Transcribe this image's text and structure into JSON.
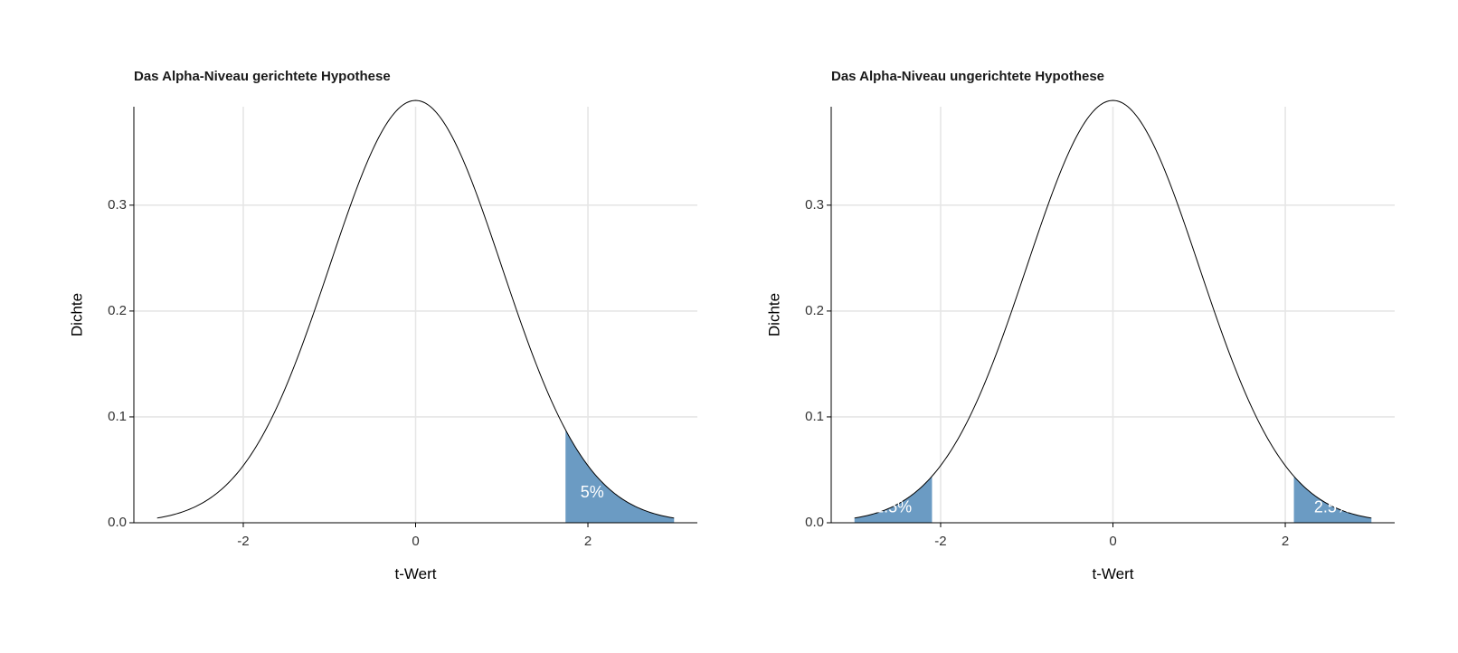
{
  "colors": {
    "fill": "#6b9bc3",
    "grid": "#e6e6e6",
    "curve": "#000000"
  },
  "chart_data": [
    {
      "type": "area",
      "title": "Das Alpha-Niveau gerichtete Hypothese",
      "xlabel": "t-Wert",
      "ylabel": "Dichte",
      "xlim": [
        -3.27,
        3.27
      ],
      "ylim": [
        0,
        0.393
      ],
      "x_ticks": [
        -2,
        0,
        2
      ],
      "x_tick_labels": [
        "-2",
        "0",
        "2"
      ],
      "y_ticks": [
        0.0,
        0.1,
        0.2,
        0.3
      ],
      "y_tick_labels": [
        "0.0",
        "0.1",
        "0.2",
        "0.3"
      ],
      "curve": {
        "distribution": "normal",
        "mean": 0,
        "sd": 1,
        "x_range": [
          -3,
          3
        ]
      },
      "shaded_regions": [
        {
          "from": 1.74,
          "to": 3,
          "label": "5%",
          "label_x": 2.05,
          "label_y": 0.028
        }
      ],
      "grid": true
    },
    {
      "type": "area",
      "title": "Das Alpha-Niveau ungerichtete Hypothese",
      "xlabel": "t-Wert",
      "ylabel": "Dichte",
      "xlim": [
        -3.27,
        3.27
      ],
      "ylim": [
        0,
        0.393
      ],
      "x_ticks": [
        -2,
        0,
        2
      ],
      "x_tick_labels": [
        "-2",
        "0",
        "2"
      ],
      "y_ticks": [
        0.0,
        0.1,
        0.2,
        0.3
      ],
      "y_tick_labels": [
        "0.0",
        "0.1",
        "0.2",
        "0.3"
      ],
      "curve": {
        "distribution": "normal",
        "mean": 0,
        "sd": 1,
        "x_range": [
          -3,
          3
        ]
      },
      "shaded_regions": [
        {
          "from": -3,
          "to": -2.1,
          "label": "2.5%",
          "label_x": -2.55,
          "label_y": 0.014
        },
        {
          "from": 2.1,
          "to": 3,
          "label": "2.5%",
          "label_x": 2.55,
          "label_y": 0.014
        }
      ],
      "grid": true
    }
  ]
}
